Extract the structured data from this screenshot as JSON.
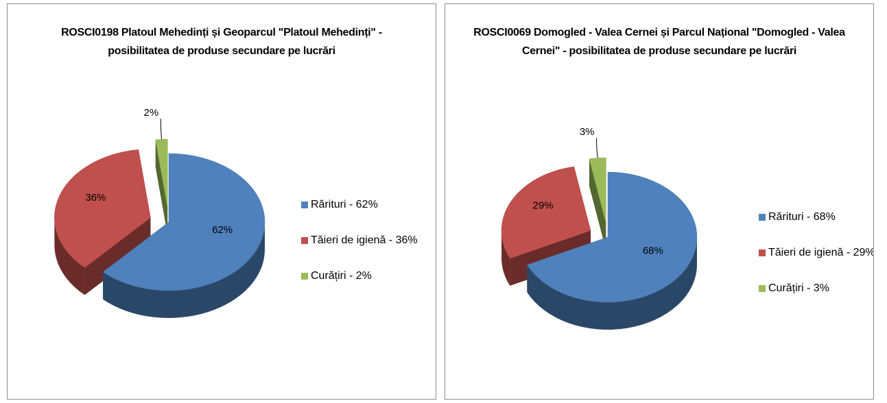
{
  "chart_data": [
    {
      "type": "pie",
      "title": "ROSCI0198 Platoul Mehedinți și Geoparcul \"Platoul Mehedinți\" - posibilitatea de produse secundare pe lucrări",
      "categories": [
        "Rărituri - 62%",
        "Tăieri de igienă - 36%",
        "Curățiri - 2%"
      ],
      "values": [
        62,
        36,
        2
      ],
      "value_labels": [
        "62%",
        "36%",
        "2%"
      ],
      "colors": [
        "#4f81bd",
        "#c0504d",
        "#9bbb59"
      ]
    },
    {
      "type": "pie",
      "title": "ROSCI0069 Domogled - Valea Cernei și Parcul Național \"Domogled - Valea Cernei\" - posibilitatea de produse secundare pe lucrări",
      "categories": [
        "Rărituri - 68%",
        "Tăieri de igienă - 29%",
        "Curățiri - 3%"
      ],
      "values": [
        68,
        29,
        3
      ],
      "value_labels": [
        "68%",
        "29%",
        "3%"
      ],
      "colors": [
        "#4f81bd",
        "#c0504d",
        "#9bbb59"
      ]
    }
  ]
}
